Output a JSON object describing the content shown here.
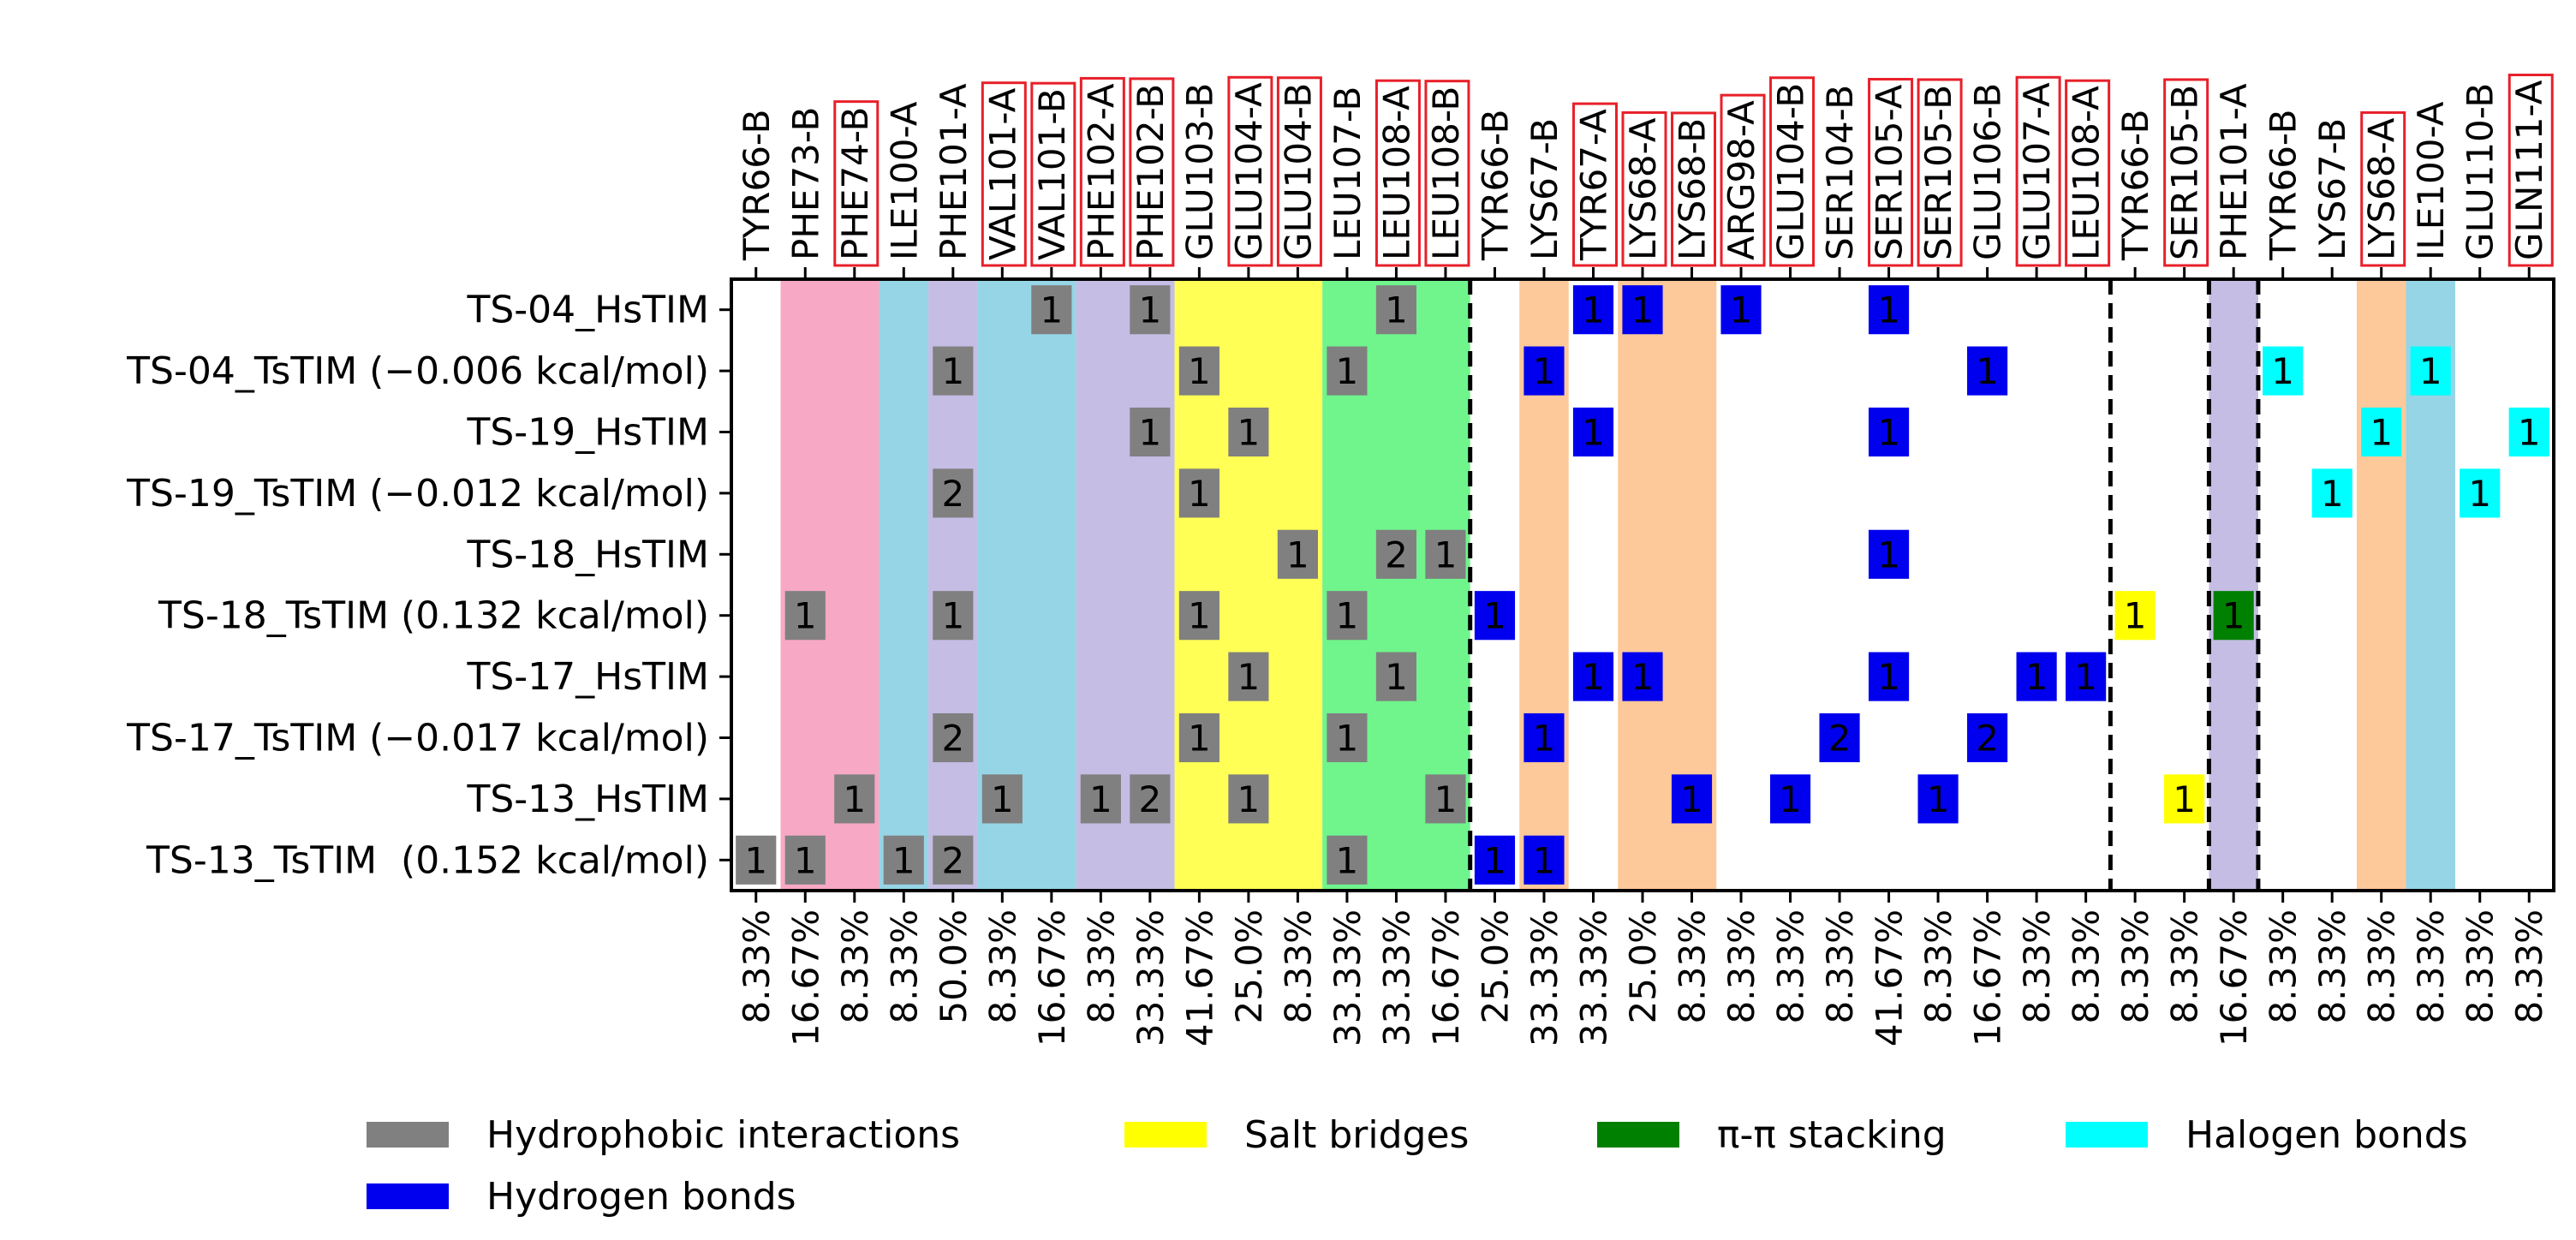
{
  "chart_data": {
    "type": "heatmap",
    "title": "",
    "xlabel": "",
    "ylabel": "",
    "columns": [
      {
        "label": "TYR66-B",
        "boxed": false,
        "bottom": "8.33%"
      },
      {
        "label": "PHE73-B",
        "boxed": false,
        "bottom": "16.67%"
      },
      {
        "label": "PHE74-B",
        "boxed": true,
        "bottom": "8.33%"
      },
      {
        "label": "ILE100-A",
        "boxed": false,
        "bottom": "8.33%"
      },
      {
        "label": "PHE101-A",
        "boxed": false,
        "bottom": "50.0%"
      },
      {
        "label": "VAL101-A",
        "boxed": true,
        "bottom": "8.33%"
      },
      {
        "label": "VAL101-B",
        "boxed": true,
        "bottom": "16.67%"
      },
      {
        "label": "PHE102-A",
        "boxed": true,
        "bottom": "8.33%"
      },
      {
        "label": "PHE102-B",
        "boxed": true,
        "bottom": "33.33%"
      },
      {
        "label": "GLU103-B",
        "boxed": false,
        "bottom": "41.67%"
      },
      {
        "label": "GLU104-A",
        "boxed": true,
        "bottom": "25.0%"
      },
      {
        "label": "GLU104-B",
        "boxed": true,
        "bottom": "8.33%"
      },
      {
        "label": "LEU107-B",
        "boxed": false,
        "bottom": "33.33%"
      },
      {
        "label": "LEU108-A",
        "boxed": true,
        "bottom": "33.33%"
      },
      {
        "label": "LEU108-B",
        "boxed": true,
        "bottom": "16.67%"
      },
      {
        "label": "TYR66-B",
        "boxed": false,
        "bottom": "25.0%"
      },
      {
        "label": "LYS67-B",
        "boxed": false,
        "bottom": "33.33%"
      },
      {
        "label": "TYR67-A",
        "boxed": true,
        "bottom": "33.33%"
      },
      {
        "label": "LYS68-A",
        "boxed": true,
        "bottom": "25.0%"
      },
      {
        "label": "LYS68-B",
        "boxed": true,
        "bottom": "8.33%"
      },
      {
        "label": "ARG98-A",
        "boxed": true,
        "bottom": "8.33%"
      },
      {
        "label": "GLU104-B",
        "boxed": true,
        "bottom": "8.33%"
      },
      {
        "label": "SER104-B",
        "boxed": false,
        "bottom": "8.33%"
      },
      {
        "label": "SER105-A",
        "boxed": true,
        "bottom": "41.67%"
      },
      {
        "label": "SER105-B",
        "boxed": true,
        "bottom": "8.33%"
      },
      {
        "label": "GLU106-B",
        "boxed": false,
        "bottom": "16.67%"
      },
      {
        "label": "GLU107-A",
        "boxed": true,
        "bottom": "8.33%"
      },
      {
        "label": "LEU108-A",
        "boxed": true,
        "bottom": "8.33%"
      },
      {
        "label": "TYR66-B",
        "boxed": false,
        "bottom": "8.33%"
      },
      {
        "label": "SER105-B",
        "boxed": true,
        "bottom": "8.33%"
      },
      {
        "label": "PHE101-A",
        "boxed": false,
        "bottom": "16.67%"
      },
      {
        "label": "TYR66-B",
        "boxed": false,
        "bottom": "8.33%"
      },
      {
        "label": "LYS67-B",
        "boxed": false,
        "bottom": "8.33%"
      },
      {
        "label": "LYS68-A",
        "boxed": true,
        "bottom": "8.33%"
      },
      {
        "label": "ILE100-A",
        "boxed": false,
        "bottom": "8.33%"
      },
      {
        "label": "GLU110-B",
        "boxed": false,
        "bottom": "8.33%"
      },
      {
        "label": "GLN111-A",
        "boxed": true,
        "bottom": "8.33%"
      }
    ],
    "rows": [
      "TS-04_HsTIM",
      "TS-04_TsTIM (−0.006 kcal/mol)",
      "TS-19_HsTIM",
      "TS-19_TsTIM (−0.012 kcal/mol)",
      "TS-18_HsTIM",
      "TS-18_TsTIM (0.132 kcal/mol)",
      "TS-17_HsTIM",
      "TS-17_TsTIM (−0.017 kcal/mol)",
      "TS-13_HsTIM",
      "TS-13_TsTIM  (0.152 kcal/mol)"
    ],
    "bands": [
      {
        "from": 1,
        "to": 2,
        "color": "#f7a8c4"
      },
      {
        "from": 3,
        "to": 3,
        "color": "#96d5e6"
      },
      {
        "from": 4,
        "to": 4,
        "color": "#c5bde4"
      },
      {
        "from": 5,
        "to": 6,
        "color": "#96d5e6"
      },
      {
        "from": 7,
        "to": 8,
        "color": "#c5bde4"
      },
      {
        "from": 9,
        "to": 11,
        "color": "#ffff55"
      },
      {
        "from": 12,
        "to": 14,
        "color": "#6ff58c"
      },
      {
        "from": 16,
        "to": 16,
        "color": "#fdc99a"
      },
      {
        "from": 18,
        "to": 19,
        "color": "#fdc99a"
      },
      {
        "from": 30,
        "to": 30,
        "color": "#c5bde4"
      },
      {
        "from": 33,
        "to": 33,
        "color": "#fdc99a"
      },
      {
        "from": 34,
        "to": 34,
        "color": "#96d5e6"
      }
    ],
    "separators_after": [
      14,
      27,
      29,
      30
    ],
    "interaction_types": {
      "H": {
        "name": "Hydrophobic interactions",
        "color": "#808080"
      },
      "B": {
        "name": "Hydrogen bonds",
        "color": "#0000ee"
      },
      "S": {
        "name": "Salt bridges",
        "color": "#ffff00"
      },
      "P": {
        "name": "π-π stacking",
        "color": "#008000"
      },
      "X": {
        "name": "Halogen bonds",
        "color": "#00ffff"
      }
    },
    "legend_order": [
      "H",
      "S",
      "P",
      "X",
      "B"
    ],
    "legend_position": "bottom",
    "cells": [
      {
        "r": 0,
        "c": 6,
        "t": "H",
        "v": "1"
      },
      {
        "r": 0,
        "c": 8,
        "t": "H",
        "v": "1"
      },
      {
        "r": 0,
        "c": 13,
        "t": "H",
        "v": "1"
      },
      {
        "r": 0,
        "c": 17,
        "t": "B",
        "v": "1"
      },
      {
        "r": 0,
        "c": 18,
        "t": "B",
        "v": "1"
      },
      {
        "r": 0,
        "c": 20,
        "t": "B",
        "v": "1"
      },
      {
        "r": 0,
        "c": 23,
        "t": "B",
        "v": "1"
      },
      {
        "r": 1,
        "c": 4,
        "t": "H",
        "v": "1"
      },
      {
        "r": 1,
        "c": 9,
        "t": "H",
        "v": "1"
      },
      {
        "r": 1,
        "c": 12,
        "t": "H",
        "v": "1"
      },
      {
        "r": 1,
        "c": 16,
        "t": "B",
        "v": "1"
      },
      {
        "r": 1,
        "c": 25,
        "t": "B",
        "v": "1"
      },
      {
        "r": 1,
        "c": 31,
        "t": "X",
        "v": "1"
      },
      {
        "r": 1,
        "c": 34,
        "t": "X",
        "v": "1"
      },
      {
        "r": 2,
        "c": 8,
        "t": "H",
        "v": "1"
      },
      {
        "r": 2,
        "c": 10,
        "t": "H",
        "v": "1"
      },
      {
        "r": 2,
        "c": 17,
        "t": "B",
        "v": "1"
      },
      {
        "r": 2,
        "c": 23,
        "t": "B",
        "v": "1"
      },
      {
        "r": 2,
        "c": 33,
        "t": "X",
        "v": "1"
      },
      {
        "r": 2,
        "c": 36,
        "t": "X",
        "v": "1"
      },
      {
        "r": 3,
        "c": 4,
        "t": "H",
        "v": "2"
      },
      {
        "r": 3,
        "c": 9,
        "t": "H",
        "v": "1"
      },
      {
        "r": 3,
        "c": 32,
        "t": "X",
        "v": "1"
      },
      {
        "r": 3,
        "c": 35,
        "t": "X",
        "v": "1"
      },
      {
        "r": 4,
        "c": 11,
        "t": "H",
        "v": "1"
      },
      {
        "r": 4,
        "c": 13,
        "t": "H",
        "v": "2"
      },
      {
        "r": 4,
        "c": 14,
        "t": "H",
        "v": "1"
      },
      {
        "r": 4,
        "c": 23,
        "t": "B",
        "v": "1"
      },
      {
        "r": 5,
        "c": 1,
        "t": "H",
        "v": "1"
      },
      {
        "r": 5,
        "c": 4,
        "t": "H",
        "v": "1"
      },
      {
        "r": 5,
        "c": 9,
        "t": "H",
        "v": "1"
      },
      {
        "r": 5,
        "c": 12,
        "t": "H",
        "v": "1"
      },
      {
        "r": 5,
        "c": 15,
        "t": "B",
        "v": "1"
      },
      {
        "r": 5,
        "c": 28,
        "t": "S",
        "v": "1"
      },
      {
        "r": 5,
        "c": 30,
        "t": "P",
        "v": "1"
      },
      {
        "r": 6,
        "c": 10,
        "t": "H",
        "v": "1"
      },
      {
        "r": 6,
        "c": 13,
        "t": "H",
        "v": "1"
      },
      {
        "r": 6,
        "c": 17,
        "t": "B",
        "v": "1"
      },
      {
        "r": 6,
        "c": 18,
        "t": "B",
        "v": "1"
      },
      {
        "r": 6,
        "c": 23,
        "t": "B",
        "v": "1"
      },
      {
        "r": 6,
        "c": 26,
        "t": "B",
        "v": "1"
      },
      {
        "r": 6,
        "c": 27,
        "t": "B",
        "v": "1"
      },
      {
        "r": 7,
        "c": 4,
        "t": "H",
        "v": "2"
      },
      {
        "r": 7,
        "c": 9,
        "t": "H",
        "v": "1"
      },
      {
        "r": 7,
        "c": 12,
        "t": "H",
        "v": "1"
      },
      {
        "r": 7,
        "c": 16,
        "t": "B",
        "v": "1"
      },
      {
        "r": 7,
        "c": 22,
        "t": "B",
        "v": "2"
      },
      {
        "r": 7,
        "c": 25,
        "t": "B",
        "v": "2"
      },
      {
        "r": 8,
        "c": 2,
        "t": "H",
        "v": "1"
      },
      {
        "r": 8,
        "c": 5,
        "t": "H",
        "v": "1"
      },
      {
        "r": 8,
        "c": 7,
        "t": "H",
        "v": "1"
      },
      {
        "r": 8,
        "c": 8,
        "t": "H",
        "v": "2"
      },
      {
        "r": 8,
        "c": 10,
        "t": "H",
        "v": "1"
      },
      {
        "r": 8,
        "c": 14,
        "t": "H",
        "v": "1"
      },
      {
        "r": 8,
        "c": 19,
        "t": "B",
        "v": "1"
      },
      {
        "r": 8,
        "c": 21,
        "t": "B",
        "v": "1"
      },
      {
        "r": 8,
        "c": 24,
        "t": "B",
        "v": "1"
      },
      {
        "r": 8,
        "c": 29,
        "t": "S",
        "v": "1"
      },
      {
        "r": 9,
        "c": 0,
        "t": "H",
        "v": "1"
      },
      {
        "r": 9,
        "c": 1,
        "t": "H",
        "v": "1"
      },
      {
        "r": 9,
        "c": 3,
        "t": "H",
        "v": "1"
      },
      {
        "r": 9,
        "c": 4,
        "t": "H",
        "v": "2"
      },
      {
        "r": 9,
        "c": 12,
        "t": "H",
        "v": "1"
      },
      {
        "r": 9,
        "c": 15,
        "t": "B",
        "v": "1"
      },
      {
        "r": 9,
        "c": 16,
        "t": "B",
        "v": "1"
      }
    ]
  }
}
